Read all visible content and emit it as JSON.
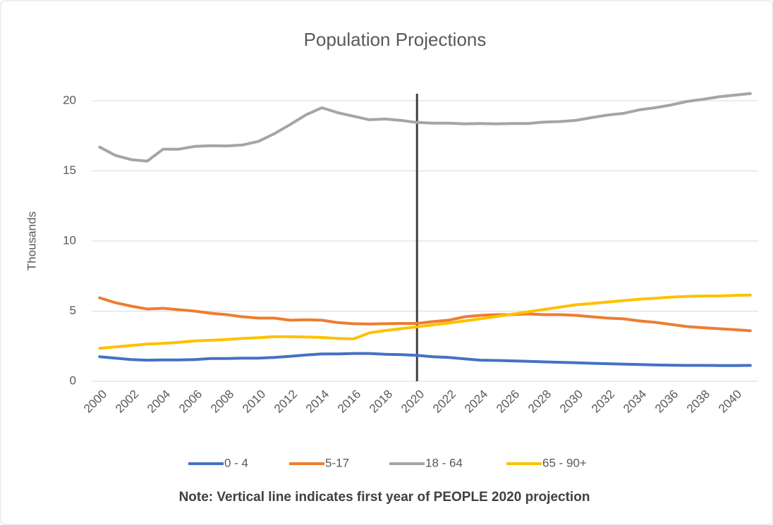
{
  "chart_data": {
    "type": "line",
    "title": "Population Projections",
    "y_label": "Thousands",
    "note": "Note:  Vertical line indicates first year of PEOPLE 2020 projection",
    "vertical_line": 2020,
    "categories": [
      2000,
      null,
      2002,
      null,
      2004,
      null,
      2006,
      null,
      2008,
      null,
      2010,
      null,
      2012,
      null,
      2014,
      null,
      2016,
      null,
      2018,
      null,
      2020,
      null,
      2022,
      null,
      2024,
      null,
      2026,
      null,
      2028,
      null,
      2030,
      null,
      2032,
      null,
      2034,
      null,
      2036,
      null,
      2038,
      null,
      2040,
      null
    ],
    "series": [
      {
        "name": "0 - 4",
        "color": "#4472c4",
        "values": [
          1.75,
          1.65,
          1.55,
          1.5,
          1.52,
          1.52,
          1.55,
          1.62,
          1.62,
          1.65,
          1.65,
          1.7,
          1.78,
          1.87,
          1.95,
          1.95,
          1.98,
          1.98,
          1.92,
          1.9,
          1.85,
          1.75,
          1.7,
          1.6,
          1.5,
          1.48,
          1.45,
          1.42,
          1.38,
          1.35,
          1.32,
          1.28,
          1.25,
          1.22,
          1.19,
          1.16,
          1.14,
          1.13,
          1.13,
          1.12,
          1.12,
          1.13
        ]
      },
      {
        "name": "5-17",
        "color": "#ed7d31",
        "values": [
          5.95,
          5.6,
          5.35,
          5.15,
          5.2,
          5.1,
          5.0,
          4.85,
          4.75,
          4.6,
          4.5,
          4.5,
          4.35,
          4.38,
          4.35,
          4.18,
          4.1,
          4.08,
          4.1,
          4.12,
          4.12,
          4.25,
          4.35,
          4.6,
          4.7,
          4.75,
          4.75,
          4.8,
          4.75,
          4.75,
          4.7,
          4.6,
          4.5,
          4.45,
          4.3,
          4.2,
          4.05,
          3.9,
          3.82,
          3.75,
          3.68,
          3.6
        ]
      },
      {
        "name": "18 - 64",
        "color": "#a5a5a5",
        "values": [
          16.7,
          16.1,
          15.8,
          15.7,
          16.55,
          16.55,
          16.75,
          16.8,
          16.78,
          16.85,
          17.1,
          17.65,
          18.3,
          19.0,
          19.5,
          19.15,
          18.9,
          18.65,
          18.7,
          18.6,
          18.45,
          18.4,
          18.4,
          18.35,
          18.38,
          18.35,
          18.38,
          18.38,
          18.48,
          18.52,
          18.6,
          18.8,
          18.98,
          19.1,
          19.35,
          19.5,
          19.7,
          19.95,
          20.1,
          20.28,
          20.4,
          20.52
        ]
      },
      {
        "name": "65 - 90+",
        "color": "#ffc000",
        "values": [
          2.35,
          2.45,
          2.55,
          2.65,
          2.7,
          2.78,
          2.88,
          2.92,
          2.98,
          3.05,
          3.1,
          3.18,
          3.18,
          3.15,
          3.12,
          3.05,
          3.02,
          3.45,
          3.62,
          3.75,
          3.88,
          4.02,
          4.15,
          4.3,
          4.45,
          4.62,
          4.78,
          4.95,
          5.12,
          5.28,
          5.45,
          5.55,
          5.65,
          5.75,
          5.85,
          5.92,
          6.0,
          6.05,
          6.08,
          6.08,
          6.12,
          6.15
        ]
      }
    ],
    "ylim": [
      0,
      20
    ],
    "yticks": [
      0,
      5,
      10,
      15,
      20
    ],
    "grid": true,
    "legend": "bottom"
  }
}
